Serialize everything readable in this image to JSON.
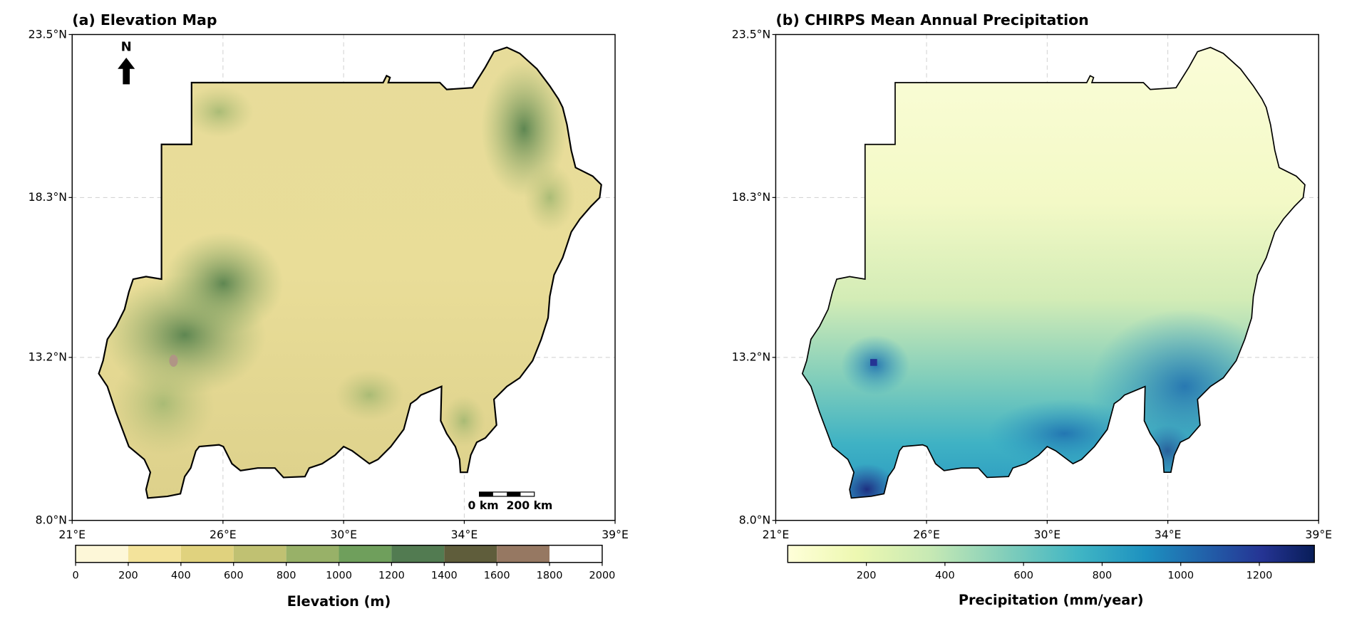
{
  "chart_data": [
    {
      "type": "heatmap",
      "title": "(a) Elevation Map",
      "xlim": [
        21,
        39
      ],
      "ylim": [
        8.0,
        23.5
      ],
      "x_ticks": [
        "21°E",
        "26°E",
        "30°E",
        "34°E",
        "39°E"
      ],
      "x_tick_values": [
        21,
        26,
        30,
        34,
        39
      ],
      "y_ticks": [
        "8.0°N",
        "13.2°N",
        "18.3°N",
        "23.5°N"
      ],
      "y_tick_values": [
        8.0,
        13.2,
        18.3,
        23.5
      ],
      "grid": true,
      "north_arrow": "N",
      "scale_bar": "0 km  200 km",
      "colorbar": {
        "label": "Elevation (m)",
        "ticks": [
          "0",
          "200",
          "400",
          "600",
          "800",
          "1000",
          "1200",
          "1400",
          "1600",
          "1800",
          "2000"
        ],
        "range": [
          0,
          2000
        ],
        "colors": [
          "#fdf7d8",
          "#f3e39b",
          "#e0d27e",
          "#c0c172",
          "#98b168",
          "#6f9f5c",
          "#527b51",
          "#5f5d3b",
          "#967862",
          "#ffffff"
        ]
      }
    },
    {
      "type": "heatmap",
      "title": "(b) CHIRPS Mean Annual Precipitation",
      "xlim": [
        21,
        39
      ],
      "ylim": [
        8.0,
        23.5
      ],
      "x_ticks": [
        "21°E",
        "26°E",
        "30°E",
        "34°E",
        "39°E"
      ],
      "x_tick_values": [
        21,
        26,
        30,
        34,
        39
      ],
      "y_ticks": [
        "8.0°N",
        "13.2°N",
        "18.3°N",
        "23.5°N"
      ],
      "y_tick_values": [
        8.0,
        13.2,
        18.3,
        23.5
      ],
      "grid": true,
      "colorbar": {
        "label": "Precipitation (mm/year)",
        "ticks": [
          "200",
          "400",
          "600",
          "800",
          "1000",
          "1200"
        ],
        "tick_values": [
          200,
          400,
          600,
          800,
          1000,
          1200
        ],
        "range": [
          0,
          1340
        ],
        "colors": [
          "#ffffd9",
          "#edf8b1",
          "#c7e9b4",
          "#7fcdbb",
          "#41b6c4",
          "#1d91c0",
          "#225ea8",
          "#253494",
          "#081d58"
        ]
      }
    }
  ]
}
